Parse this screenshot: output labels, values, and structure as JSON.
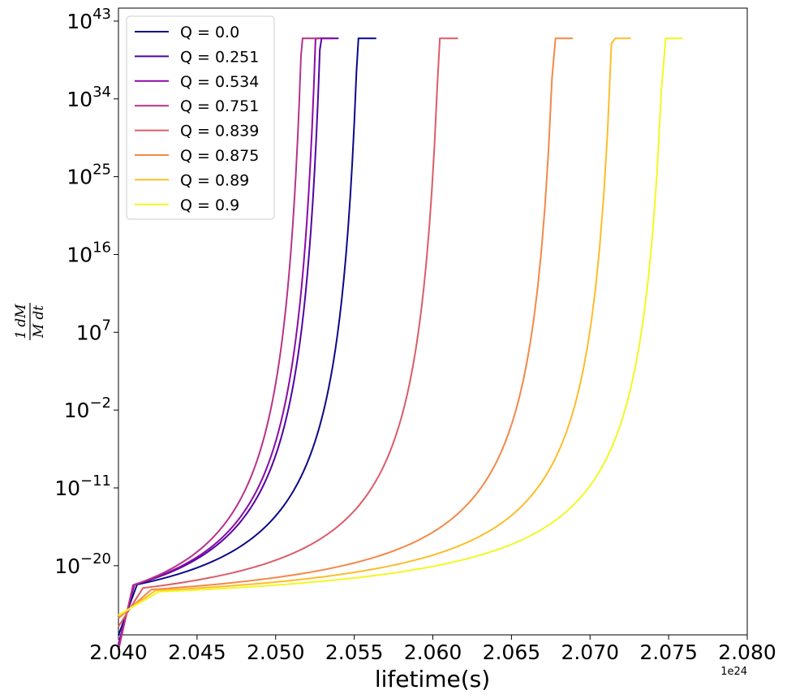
{
  "chart_data": {
    "type": "line",
    "title": "",
    "xlabel": "lifetime(s)",
    "ylabel": "1 dM / M dt",
    "x_offset_label": "1e24",
    "x_scale_factor": 1e+24,
    "xlim": [
      2.04,
      2.08
    ],
    "y_scale": "log",
    "ylim_exp": [
      -28,
      44.5
    ],
    "x_ticks": [
      2.04,
      2.045,
      2.05,
      2.055,
      2.06,
      2.065,
      2.07,
      2.075,
      2.08
    ],
    "x_tick_labels": [
      "2.040",
      "2.045",
      "2.050",
      "2.055",
      "2.060",
      "2.065",
      "2.070",
      "2.075",
      "2.080"
    ],
    "y_ticks_exp": [
      -20,
      -11,
      -2,
      7,
      16,
      25,
      34,
      43
    ],
    "y_tick_labels": [
      {
        "base": "10",
        "exp": "−20"
      },
      {
        "base": "10",
        "exp": "−11"
      },
      {
        "base": "10",
        "exp": "−2"
      },
      {
        "base": "10",
        "exp": "7"
      },
      {
        "base": "10",
        "exp": "16"
      },
      {
        "base": "10",
        "exp": "25"
      },
      {
        "base": "10",
        "exp": "34"
      },
      {
        "base": "10",
        "exp": "43"
      }
    ],
    "grid": false,
    "legend_position": "top-left",
    "series": [
      {
        "name": "Q = 0.0",
        "color": "#0d0887",
        "x_end": 2.0564,
        "y_start_exp": -22.6,
        "y_end_exp": 41
      },
      {
        "name": "Q = 0.251",
        "color": "#5302a3",
        "x_end": 2.054,
        "y_start_exp": -22.7,
        "y_end_exp": 41
      },
      {
        "name": "Q = 0.534",
        "color": "#8b0aa5",
        "x_end": 2.0537,
        "y_start_exp": -22.7,
        "y_end_exp": 41
      },
      {
        "name": "Q = 0.751",
        "color": "#b83289",
        "x_end": 2.0528,
        "y_start_exp": -22.8,
        "y_end_exp": 41
      },
      {
        "name": "Q = 0.839",
        "color": "#db5c68",
        "x_end": 2.0616,
        "y_start_exp": -22.9,
        "y_end_exp": 41
      },
      {
        "name": "Q = 0.875",
        "color": "#f48849",
        "x_end": 2.0689,
        "y_start_exp": -23.0,
        "y_end_exp": 41
      },
      {
        "name": "Q = 0.89",
        "color": "#febc2a",
        "x_end": 2.0726,
        "y_start_exp": -23.1,
        "y_end_exp": 41
      },
      {
        "name": "Q = 0.9",
        "color": "#f0f921",
        "x_end": 2.0759,
        "y_start_exp": -23.2,
        "y_end_exp": 41
      }
    ]
  }
}
